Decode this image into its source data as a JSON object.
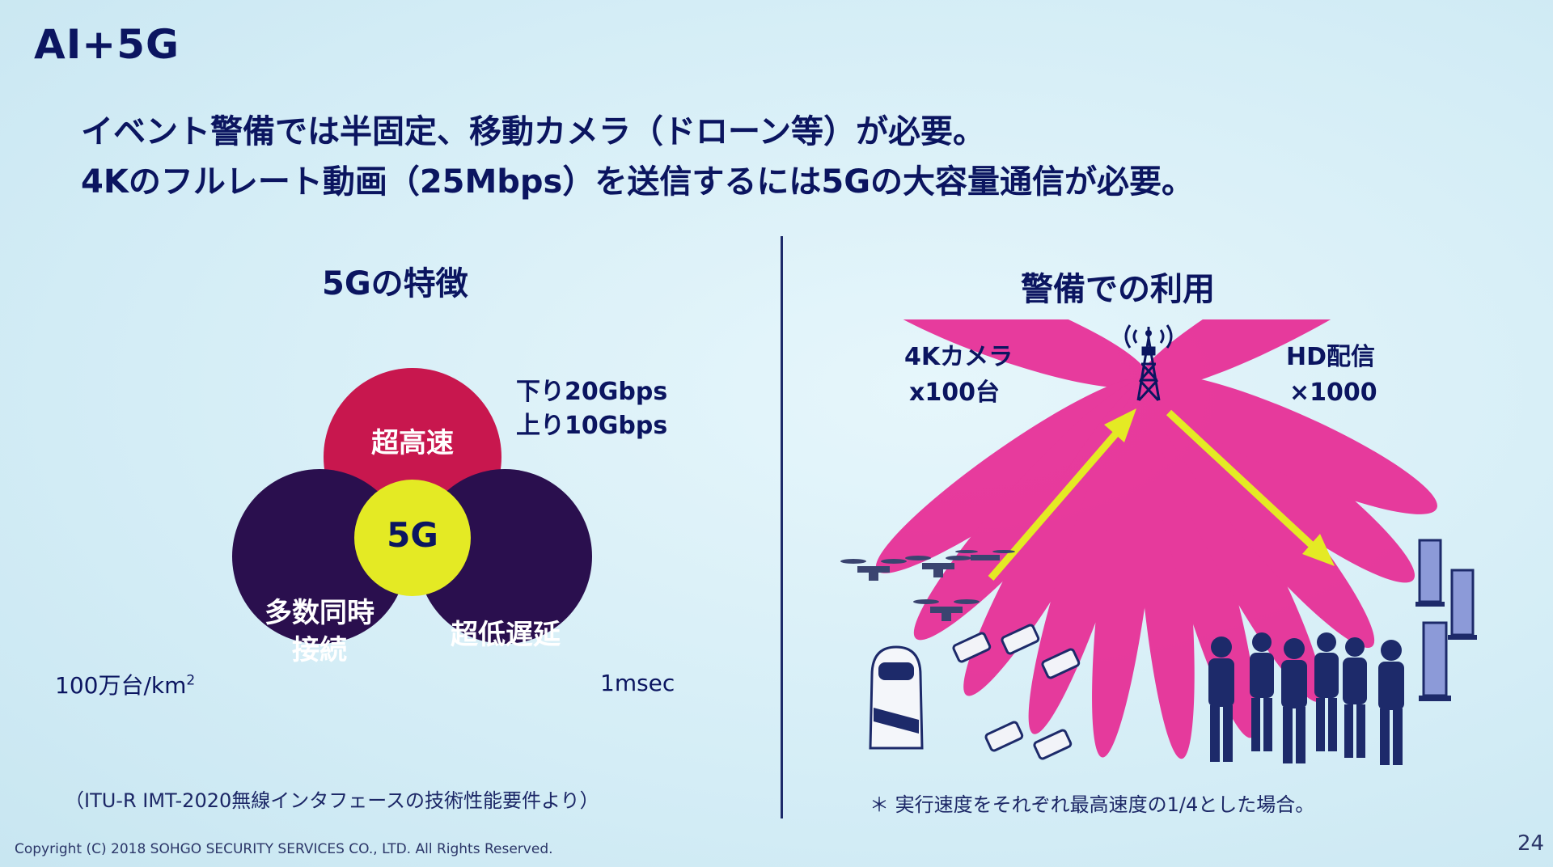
{
  "slide": {
    "title": "AI+5G",
    "headline": {
      "line1": "イベント警備では半固定、移動カメラ（ドローン等）が必要。",
      "line2": "4Kのフルレート動画（25Mbps）を送信するには5Gの大容量通信が必要。"
    },
    "left": {
      "heading": "5Gの特徴",
      "circles": {
        "top": "超高速",
        "center": "5G",
        "bottom_left_line1": "多数同時",
        "bottom_left_line2": "接続",
        "bottom_right": "超低遅延"
      },
      "speed_line1": "下り20Gbps",
      "speed_line2": "上り10Gbps",
      "density_value": "100万台/km",
      "density_sup": "2",
      "latency": "1msec",
      "source_note": "（ITU-R IMT-2020無線インタフェースの技術性能要件より）"
    },
    "right": {
      "heading": "警備での利用",
      "camera_line1": "4Kカメラ",
      "camera_line2": "x100台",
      "delivery_line1": "HD配信",
      "delivery_line2": "×1000",
      "footnote": "＊ 実行速度をそれぞれ最高速度の1/4とした場合。"
    },
    "footer": "Copyright (C) 2018  SOHGO SECURITY SERVICES CO., LTD. All Rights Reserved.",
    "page_number": "24"
  },
  "colors": {
    "navy": "#0b1560",
    "crimson": "#c8174e",
    "dark_purple": "#2a0f4e",
    "yellow": "#e4ea24",
    "magenta": "#e8198c",
    "background": "#d7eef7"
  },
  "icons": [
    "antenna-tower-icon",
    "drone-icon",
    "security-robot-icon",
    "security-camera-icon",
    "guard-person-icon",
    "digital-signage-icon"
  ]
}
